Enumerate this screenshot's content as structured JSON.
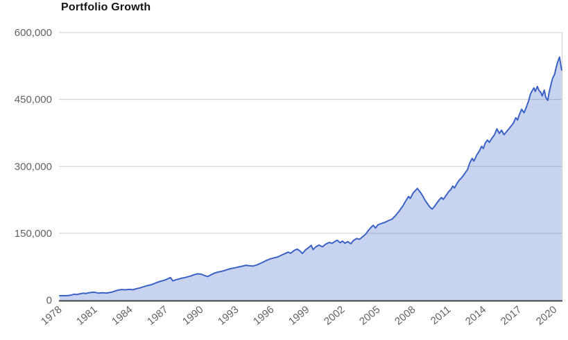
{
  "chart_data": {
    "type": "area",
    "title": "Portfolio Growth",
    "series_name": "Portfolio",
    "xlabel": "",
    "ylabel": "",
    "xlim": [
      1978,
      2020.6
    ],
    "ylim": [
      0,
      600000
    ],
    "grid": "horizontal",
    "legend": "none",
    "y_ticks": [
      {
        "value": 0,
        "label": "0"
      },
      {
        "value": 150000,
        "label": "150,000"
      },
      {
        "value": 300000,
        "label": "300,000"
      },
      {
        "value": 450000,
        "label": "450,000"
      },
      {
        "value": 600000,
        "label": "600,000"
      }
    ],
    "x_ticks": [
      {
        "value": 1978,
        "label": "1978"
      },
      {
        "value": 1981,
        "label": "1981"
      },
      {
        "value": 1984,
        "label": "1984"
      },
      {
        "value": 1987,
        "label": "1987"
      },
      {
        "value": 1990,
        "label": "1990"
      },
      {
        "value": 1993,
        "label": "1993"
      },
      {
        "value": 1996,
        "label": "1996"
      },
      {
        "value": 1999,
        "label": "1999"
      },
      {
        "value": 2002,
        "label": "2002"
      },
      {
        "value": 2005,
        "label": "2005"
      },
      {
        "value": 2008,
        "label": "2008"
      },
      {
        "value": 2011,
        "label": "2011"
      },
      {
        "value": 2014,
        "label": "2014"
      },
      {
        "value": 2017,
        "label": "2017"
      },
      {
        "value": 2020,
        "label": "2020"
      }
    ],
    "colors": {
      "line": "#3a62c6",
      "fill": "rgba(58,98,198,0.28)",
      "grid": "#cccccc",
      "axis": "#424242",
      "tick_label": "#616161",
      "title": "#141414",
      "background": "#ffffff"
    },
    "points": [
      [
        1978.0,
        10000
      ],
      [
        1978.3,
        10300
      ],
      [
        1978.6,
        10150
      ],
      [
        1978.9,
        11000
      ],
      [
        1979.2,
        13400
      ],
      [
        1979.45,
        12700
      ],
      [
        1979.7,
        14200
      ],
      [
        1980.0,
        15800
      ],
      [
        1980.2,
        14900
      ],
      [
        1980.5,
        16800
      ],
      [
        1980.8,
        17900
      ],
      [
        1981.0,
        17500
      ],
      [
        1981.3,
        15900
      ],
      [
        1981.6,
        16700
      ],
      [
        1981.9,
        16000
      ],
      [
        1982.2,
        16900
      ],
      [
        1982.5,
        18600
      ],
      [
        1982.8,
        21500
      ],
      [
        1983.0,
        22800
      ],
      [
        1983.3,
        23900
      ],
      [
        1983.6,
        23300
      ],
      [
        1983.9,
        24200
      ],
      [
        1984.2,
        23500
      ],
      [
        1984.5,
        25600
      ],
      [
        1984.8,
        27400
      ],
      [
        1985.1,
        29900
      ],
      [
        1985.4,
        32500
      ],
      [
        1985.7,
        34100
      ],
      [
        1986.0,
        36900
      ],
      [
        1986.3,
        40200
      ],
      [
        1986.6,
        42700
      ],
      [
        1986.9,
        44800
      ],
      [
        1987.15,
        47700
      ],
      [
        1987.4,
        50800
      ],
      [
        1987.6,
        43200
      ],
      [
        1987.85,
        45800
      ],
      [
        1988.1,
        47300
      ],
      [
        1988.35,
        49400
      ],
      [
        1988.6,
        50500
      ],
      [
        1988.85,
        52300
      ],
      [
        1989.1,
        54100
      ],
      [
        1989.4,
        56900
      ],
      [
        1989.7,
        59100
      ],
      [
        1990.0,
        58300
      ],
      [
        1990.25,
        55700
      ],
      [
        1990.55,
        52900
      ],
      [
        1990.8,
        56400
      ],
      [
        1991.1,
        60300
      ],
      [
        1991.4,
        62900
      ],
      [
        1991.7,
        64500
      ],
      [
        1992.0,
        66600
      ],
      [
        1992.3,
        69300
      ],
      [
        1992.6,
        71300
      ],
      [
        1992.9,
        72700
      ],
      [
        1993.2,
        74600
      ],
      [
        1993.5,
        76300
      ],
      [
        1993.8,
        78200
      ],
      [
        1994.1,
        77200
      ],
      [
        1994.4,
        76500
      ],
      [
        1994.7,
        78700
      ],
      [
        1995.0,
        82100
      ],
      [
        1995.3,
        85900
      ],
      [
        1995.6,
        89700
      ],
      [
        1995.9,
        92900
      ],
      [
        1996.2,
        95000
      ],
      [
        1996.5,
        96900
      ],
      [
        1996.8,
        100700
      ],
      [
        1997.1,
        104300
      ],
      [
        1997.4,
        107700
      ],
      [
        1997.6,
        105300
      ],
      [
        1997.9,
        111400
      ],
      [
        1998.15,
        114500
      ],
      [
        1998.4,
        110100
      ],
      [
        1998.6,
        104600
      ],
      [
        1998.85,
        112700
      ],
      [
        1999.1,
        117500
      ],
      [
        1999.35,
        123000
      ],
      [
        1999.5,
        113700
      ],
      [
        1999.75,
        119900
      ],
      [
        2000.0,
        123500
      ],
      [
        2000.3,
        119700
      ],
      [
        2000.6,
        126200
      ],
      [
        2000.9,
        129500
      ],
      [
        2001.1,
        127300
      ],
      [
        2001.4,
        132400
      ],
      [
        2001.55,
        134500
      ],
      [
        2001.8,
        128800
      ],
      [
        2002.0,
        132500
      ],
      [
        2002.2,
        127700
      ],
      [
        2002.45,
        131300
      ],
      [
        2002.7,
        126500
      ],
      [
        2002.95,
        134300
      ],
      [
        2003.2,
        138300
      ],
      [
        2003.45,
        136400
      ],
      [
        2003.7,
        142200
      ],
      [
        2003.95,
        147700
      ],
      [
        2004.15,
        154900
      ],
      [
        2004.4,
        162900
      ],
      [
        2004.6,
        168000
      ],
      [
        2004.8,
        161800
      ],
      [
        2005.0,
        168900
      ],
      [
        2005.3,
        172000
      ],
      [
        2005.6,
        174700
      ],
      [
        2005.9,
        178500
      ],
      [
        2006.2,
        181700
      ],
      [
        2006.5,
        189900
      ],
      [
        2006.8,
        199700
      ],
      [
        2007.1,
        210500
      ],
      [
        2007.35,
        221900
      ],
      [
        2007.6,
        232500
      ],
      [
        2007.75,
        228000
      ],
      [
        2008.0,
        240800
      ],
      [
        2008.35,
        250600
      ],
      [
        2008.6,
        242000
      ],
      [
        2008.8,
        234000
      ],
      [
        2009.0,
        224000
      ],
      [
        2009.2,
        216500
      ],
      [
        2009.4,
        209000
      ],
      [
        2009.6,
        204200
      ],
      [
        2009.8,
        210300
      ],
      [
        2010.0,
        217300
      ],
      [
        2010.2,
        224800
      ],
      [
        2010.4,
        230200
      ],
      [
        2010.55,
        226000
      ],
      [
        2010.8,
        235300
      ],
      [
        2011.0,
        243100
      ],
      [
        2011.2,
        248400
      ],
      [
        2011.35,
        255900
      ],
      [
        2011.5,
        251700
      ],
      [
        2011.7,
        261100
      ],
      [
        2011.9,
        269100
      ],
      [
        2012.1,
        274300
      ],
      [
        2012.25,
        279400
      ],
      [
        2012.45,
        287200
      ],
      [
        2012.6,
        292300
      ],
      [
        2012.8,
        308000
      ],
      [
        2013.0,
        318000
      ],
      [
        2013.15,
        312000
      ],
      [
        2013.4,
        326000
      ],
      [
        2013.6,
        334000
      ],
      [
        2013.8,
        345000
      ],
      [
        2013.95,
        340000
      ],
      [
        2014.1,
        352000
      ],
      [
        2014.3,
        359000
      ],
      [
        2014.45,
        354000
      ],
      [
        2014.7,
        364000
      ],
      [
        2014.9,
        371000
      ],
      [
        2015.1,
        384000
      ],
      [
        2015.3,
        374000
      ],
      [
        2015.5,
        381000
      ],
      [
        2015.7,
        371000
      ],
      [
        2015.95,
        379000
      ],
      [
        2016.2,
        387000
      ],
      [
        2016.5,
        397000
      ],
      [
        2016.7,
        409000
      ],
      [
        2016.85,
        404000
      ],
      [
        2017.0,
        416000
      ],
      [
        2017.2,
        428000
      ],
      [
        2017.4,
        420000
      ],
      [
        2017.6,
        433000
      ],
      [
        2017.8,
        448000
      ],
      [
        2017.94,
        462000
      ],
      [
        2018.06,
        468000
      ],
      [
        2018.24,
        476000
      ],
      [
        2018.35,
        468000
      ],
      [
        2018.53,
        479000
      ],
      [
        2018.65,
        471000
      ],
      [
        2018.82,
        466000
      ],
      [
        2018.94,
        458000
      ],
      [
        2019.12,
        471000
      ],
      [
        2019.24,
        455000
      ],
      [
        2019.41,
        448000
      ],
      [
        2019.53,
        466000
      ],
      [
        2019.71,
        486000
      ],
      [
        2019.82,
        497000
      ],
      [
        2020.0,
        507000
      ],
      [
        2020.12,
        521000
      ],
      [
        2020.24,
        533000
      ],
      [
        2020.35,
        541000
      ],
      [
        2020.41,
        545000
      ],
      [
        2020.53,
        525000
      ],
      [
        2020.59,
        516000
      ]
    ]
  }
}
